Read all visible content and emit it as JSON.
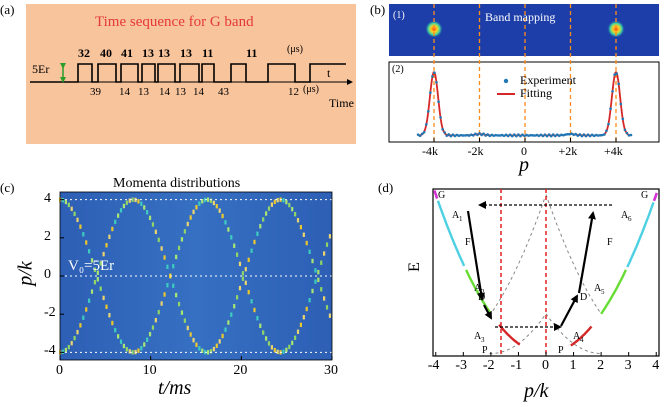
{
  "panels": {
    "a": {
      "label": "(a)",
      "title": "Time sequence for G band",
      "level": "5Er",
      "top_numbers": [
        "32",
        "40",
        "41",
        "13",
        "13",
        "13",
        "11",
        "11"
      ],
      "top_unit": "(μs)",
      "bottom_numbers": [
        "39",
        "14",
        "13",
        "14",
        "13",
        "14",
        "43",
        "12"
      ],
      "bottom_unit": "(μs)",
      "t_label": "t",
      "time_label": "Time"
    },
    "b": {
      "label": "(b)",
      "sub1": "(1)",
      "sub2": "(2)",
      "band_mapping": "Band mapping",
      "legend_experiment": "Experiment",
      "legend_fitting": "Fitting",
      "x_ticks": [
        "-4k",
        "-2k",
        "0",
        "+2k",
        "+4k"
      ],
      "xlabel": "p"
    },
    "c": {
      "label": "(c)",
      "title": "Momenta distributions",
      "annotation": "V₀=5Er",
      "y_ticks": [
        "4",
        "2",
        "0",
        "-2",
        "-4"
      ],
      "x_ticks": [
        "0",
        "10",
        "20",
        "30"
      ],
      "ylabel": "p/k",
      "xlabel": "t/ms"
    },
    "d": {
      "label": "(d)",
      "ylabel": "E",
      "xlabel": "p/k",
      "x_ticks": [
        "-4",
        "-3",
        "-2",
        "-1",
        "0",
        "1",
        "2",
        "3",
        "4"
      ],
      "labels": {
        "G1": "G",
        "G2": "G",
        "A1": "A",
        "A6": "A",
        "F1": "F",
        "F2": "F",
        "A2": "A",
        "A5": "A",
        "D1": "D",
        "D2": "D",
        "A3": "A",
        "A4": "A",
        "P1": "P",
        "P2": "P"
      },
      "subs": {
        "A1": "1",
        "A6": "6",
        "A2": "2",
        "A5": "5",
        "A3": "3",
        "A4": "4"
      }
    }
  },
  "colors": {
    "seq_bg": "#f8c49c",
    "seq_title": "#e53935",
    "fit_red": "#d62728",
    "exp_blue": "#1f77b4",
    "orange_dash": "#ff8c1a",
    "heat_bg": "#2f63b8",
    "cyan": "#4dd0e1",
    "green": "#66dd33",
    "magenta": "#d633d6",
    "red_dash": "#e02020"
  },
  "chart_data": [
    {
      "type": "line",
      "title": "",
      "xlabel": "p",
      "ylabel": "",
      "x_ticks": [
        "-4k",
        "-2k",
        "0",
        "+2k",
        "+4k"
      ],
      "series": [
        {
          "name": "Experiment",
          "x": [
            -4.6,
            -4.2,
            -4.0,
            -3.8,
            -3.0,
            -2.0,
            -1.0,
            0,
            1.0,
            2.0,
            3.0,
            3.8,
            4.0,
            4.2,
            4.6
          ],
          "y": [
            0.05,
            0.3,
            1.0,
            0.3,
            0.05,
            0.06,
            0.04,
            0.04,
            0.04,
            0.04,
            0.05,
            0.3,
            1.0,
            0.3,
            0.05
          ]
        },
        {
          "name": "Fitting",
          "x": [
            -4.6,
            -4.2,
            -4.0,
            -3.8,
            -3.0,
            -2.0,
            -1.0,
            0,
            1.0,
            2.0,
            3.0,
            3.8,
            4.0,
            4.2,
            4.6
          ],
          "y": [
            0.04,
            0.25,
            1.0,
            0.25,
            0.04,
            0.05,
            0.03,
            0.03,
            0.03,
            0.03,
            0.04,
            0.25,
            1.0,
            0.25,
            0.04
          ]
        }
      ]
    },
    {
      "type": "heatmap",
      "title": "Momenta distributions",
      "xlabel": "t/ms",
      "ylabel": "p/k",
      "xlim": [
        0,
        30
      ],
      "ylim": [
        -4,
        4
      ],
      "x_ticks": [
        "0",
        "10",
        "20",
        "30"
      ],
      "y_ticks": [
        "4",
        "2",
        "0",
        "-2",
        "-4"
      ]
    }
  ]
}
